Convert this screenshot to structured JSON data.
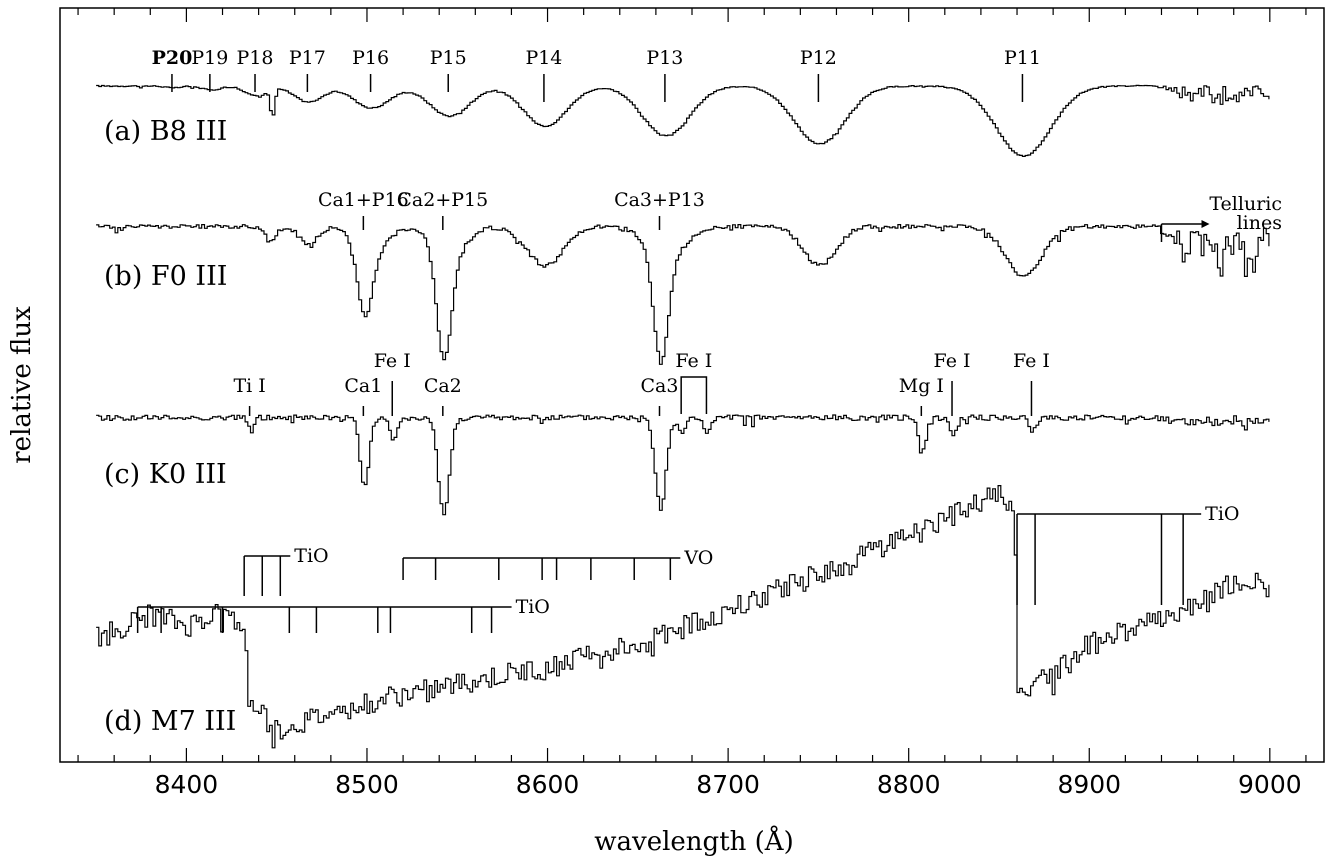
{
  "chart_data": {
    "type": "line",
    "xlabel": "wavelength (Å)",
    "ylabel": "relative flux",
    "xlim": [
      8330,
      9030
    ],
    "xticks": [
      8400,
      8500,
      8600,
      8700,
      8800,
      8900,
      9000
    ],
    "series": [
      {
        "name": "(a) B8 III",
        "base": 0.94,
        "depth": 1.0,
        "noise": 0.006,
        "telluric": 0.22,
        "lines": [
          {
            "w": 8392,
            "d": 0.02,
            "s": 4
          },
          {
            "w": 8413,
            "d": 0.04,
            "s": 5
          },
          {
            "w": 8438,
            "d": 0.1,
            "s": 6
          },
          {
            "w": 8447,
            "d": 0.28,
            "s": 1.2
          },
          {
            "w": 8467,
            "d": 0.16,
            "s": 8
          },
          {
            "w": 8502,
            "d": 0.22,
            "s": 10
          },
          {
            "w": 8545,
            "d": 0.3,
            "s": 11
          },
          {
            "w": 8598,
            "d": 0.4,
            "s": 12
          },
          {
            "w": 8665,
            "d": 0.5,
            "s": 13
          },
          {
            "w": 8750,
            "d": 0.58,
            "s": 14
          },
          {
            "w": 8863,
            "d": 0.7,
            "s": 15
          }
        ]
      },
      {
        "name": "(b) F0 III",
        "base": 0.95,
        "depth": 1.0,
        "noise": 0.015,
        "telluric": 0.55,
        "lines": [
          {
            "w": 8446,
            "d": 0.12,
            "s": 3
          },
          {
            "w": 8467,
            "d": 0.14,
            "s": 5
          },
          {
            "w": 8498,
            "d": 0.52,
            "s": 4
          },
          {
            "w": 8502,
            "d": 0.2,
            "s": 8
          },
          {
            "w": 8542,
            "d": 0.82,
            "s": 4
          },
          {
            "w": 8545,
            "d": 0.22,
            "s": 9
          },
          {
            "w": 8598,
            "d": 0.3,
            "s": 10
          },
          {
            "w": 8662,
            "d": 0.8,
            "s": 4
          },
          {
            "w": 8665,
            "d": 0.25,
            "s": 10
          },
          {
            "w": 8750,
            "d": 0.3,
            "s": 9
          },
          {
            "w": 8863,
            "d": 0.38,
            "s": 10
          }
        ]
      },
      {
        "name": "(c) K0 III",
        "base": 0.93,
        "depth": 1.0,
        "noise": 0.025,
        "telluric": 0.1,
        "lines": [
          {
            "w": 8435,
            "d": 0.12,
            "s": 1.5
          },
          {
            "w": 8498,
            "d": 0.62,
            "s": 2.5
          },
          {
            "w": 8514,
            "d": 0.22,
            "s": 2
          },
          {
            "w": 8542,
            "d": 0.88,
            "s": 3
          },
          {
            "w": 8662,
            "d": 0.82,
            "s": 3
          },
          {
            "w": 8674,
            "d": 0.14,
            "s": 2
          },
          {
            "w": 8688,
            "d": 0.14,
            "s": 2
          },
          {
            "w": 8807,
            "d": 0.3,
            "s": 2
          },
          {
            "w": 8824,
            "d": 0.16,
            "s": 2
          },
          {
            "w": 8868,
            "d": 0.12,
            "s": 2
          }
        ]
      },
      {
        "name": "(d) M7 III",
        "noise": 0.04,
        "continuum": [
          [
            8350,
            0.42
          ],
          [
            8380,
            0.5
          ],
          [
            8400,
            0.46
          ],
          [
            8420,
            0.52
          ],
          [
            8432,
            0.46
          ],
          [
            8434,
            0.2
          ],
          [
            8450,
            0.1
          ],
          [
            8500,
            0.2
          ],
          [
            8550,
            0.26
          ],
          [
            8600,
            0.32
          ],
          [
            8650,
            0.4
          ],
          [
            8700,
            0.52
          ],
          [
            8750,
            0.64
          ],
          [
            8800,
            0.78
          ],
          [
            8850,
            0.92
          ],
          [
            8858,
            0.86
          ],
          [
            8860,
            0.2
          ],
          [
            8870,
            0.26
          ],
          [
            8900,
            0.4
          ],
          [
            8950,
            0.52
          ],
          [
            8980,
            0.62
          ],
          [
            9000,
            0.6
          ]
        ]
      }
    ],
    "annotations": {
      "a_lines": [
        {
          "label": "P20",
          "w": 8392
        },
        {
          "label": "P19",
          "w": 8413
        },
        {
          "label": "P18",
          "w": 8438
        },
        {
          "label": "P17",
          "w": 8467
        },
        {
          "label": "P16",
          "w": 8502
        },
        {
          "label": "P15",
          "w": 8545
        },
        {
          "label": "P14",
          "w": 8598
        },
        {
          "label": "P13",
          "w": 8665
        },
        {
          "label": "P12",
          "w": 8750
        },
        {
          "label": "P11",
          "w": 8863
        }
      ],
      "b_lines": [
        {
          "label": "Ca1+P16",
          "w": 8498
        },
        {
          "label": "Ca2+P15",
          "w": 8542
        },
        {
          "label": "Ca3+P13",
          "w": 8662
        }
      ],
      "b_telluric": {
        "label_line1": "Telluric",
        "label_line2": "lines",
        "w": 8940
      },
      "c_lines": [
        {
          "label": "Ti I",
          "w": 8435
        },
        {
          "label": "Ca1",
          "w": 8498
        },
        {
          "label": "Fe I",
          "w": 8514
        },
        {
          "label": "Ca2",
          "w": 8542
        },
        {
          "label": "Ca3",
          "w": 8662
        },
        {
          "label": "Mg I",
          "w": 8807
        },
        {
          "label": "Fe I",
          "w": 8824
        },
        {
          "label": "Fe I",
          "w": 8868
        }
      ],
      "c_bracket": {
        "label": "Fe I",
        "w1": 8674,
        "w2": 8688
      },
      "d_tio_short": {
        "label": "TiO",
        "ticks": [
          8432,
          8442,
          8452
        ]
      },
      "d_vo": {
        "label": "VO",
        "ticks": [
          8520,
          8538,
          8573,
          8597,
          8605,
          8624,
          8648,
          8668
        ]
      },
      "d_tio_long": {
        "label": "TiO",
        "ticks": [
          8373,
          8386,
          8420,
          8457,
          8472,
          8506,
          8513,
          8558,
          8569
        ]
      },
      "d_tio_right": {
        "label": "TiO",
        "ticks": [
          8860,
          8870,
          8940,
          8952
        ]
      }
    }
  }
}
